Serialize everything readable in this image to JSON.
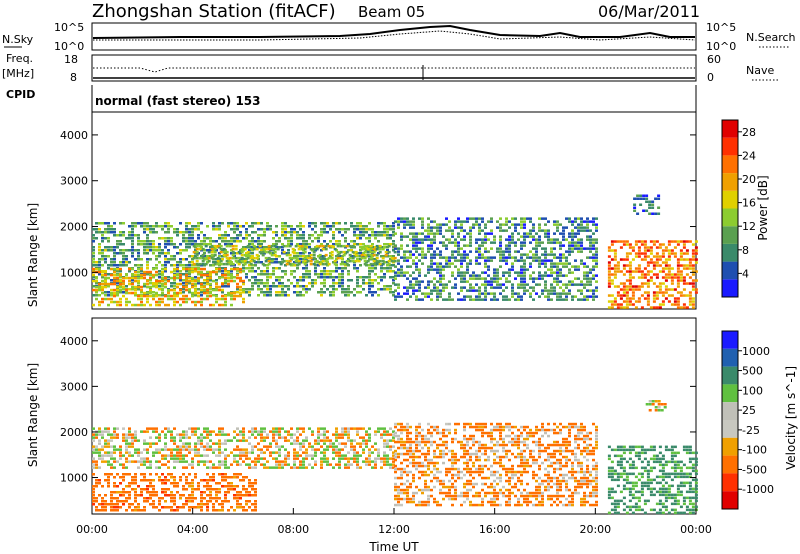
{
  "header": {
    "station": "Zhongshan Station (fitACF)",
    "beam": "Beam 05",
    "date": "06/Mar/2011"
  },
  "noise_panel": {
    "left_label": "N.Sky",
    "left_ticks": [
      "10^5",
      "10^0"
    ],
    "right_ticks": [
      "10^5",
      "10^0"
    ],
    "right_label": "N.Search"
  },
  "freq_panel": {
    "left_label_line1": "Freq.",
    "left_label_line2": "[MHz]",
    "left_ticks": [
      "18",
      "8"
    ],
    "right_ticks": [
      "60",
      "0"
    ],
    "right_label": "Nave"
  },
  "cpid_panel": {
    "label": "CPID",
    "text": "normal (fast stereo) 153"
  },
  "colors": {
    "power_scale": [
      "#1a1aff",
      "#1f4fb0",
      "#3a8a6a",
      "#5aa050",
      "#8ccc30",
      "#e0d000",
      "#f0a000",
      "#ff7000",
      "#ff3000",
      "#e00000"
    ],
    "velocity_scale": [
      "#1a1aff",
      "#2060b0",
      "#3a8a6a",
      "#60c040",
      "#c0c0b8",
      "#c8c8c0",
      "#f0a000",
      "#ff7000",
      "#ff3000",
      "#e00000"
    ]
  },
  "chart_data": [
    {
      "type": "heatmap",
      "title": "",
      "quantity": "Power",
      "ylabel": "Slant Range [km]",
      "xlabel": "",
      "xlim": [
        "00:00",
        "00:00"
      ],
      "ylim": [
        200,
        4500
      ],
      "yticks": [
        1000,
        2000,
        3000,
        4000
      ],
      "colorbar": {
        "label": "Power [dB]",
        "ticks": [
          4,
          8,
          12,
          16,
          20,
          24,
          28
        ],
        "range": [
          0,
          30
        ]
      },
      "echo_regions": [
        {
          "t_start": 0.0,
          "t_end": 12.0,
          "range_low": 500,
          "range_high": 2100,
          "level": 10
        },
        {
          "t_start": 0.0,
          "t_end": 6.0,
          "range_low": 300,
          "range_high": 1100,
          "level": 18
        },
        {
          "t_start": 4.0,
          "t_end": 12.0,
          "range_low": 1200,
          "range_high": 1600,
          "level": 14
        },
        {
          "t_start": 12.0,
          "t_end": 20.0,
          "range_low": 400,
          "range_high": 2200,
          "level": 8
        },
        {
          "t_start": 20.5,
          "t_end": 24.0,
          "range_low": 200,
          "range_high": 1700,
          "level": 22
        },
        {
          "t_start": 21.5,
          "t_end": 22.5,
          "range_low": 2300,
          "range_high": 2700,
          "level": 6
        }
      ]
    },
    {
      "type": "heatmap",
      "title": "",
      "quantity": "Velocity",
      "ylabel": "Slant Range [km]",
      "xlabel": "Time UT",
      "xticks": [
        "00:00",
        "04:00",
        "08:00",
        "12:00",
        "16:00",
        "20:00",
        "00:00"
      ],
      "ylim": [
        200,
        4500
      ],
      "yticks": [
        1000,
        2000,
        3000,
        4000
      ],
      "colorbar": {
        "label": "Velocity [m s^-1]",
        "ticks": [
          1000,
          500,
          100,
          25,
          -25,
          -100,
          -500,
          -1000
        ]
      },
      "echo_regions": [
        {
          "t_start": 0.0,
          "t_end": 12.0,
          "range_low": 1200,
          "range_high": 2100,
          "velocity": 0
        },
        {
          "t_start": 0.0,
          "t_end": 6.5,
          "range_low": 300,
          "range_high": 1100,
          "velocity": -300
        },
        {
          "t_start": 12.0,
          "t_end": 20.0,
          "range_low": 400,
          "range_high": 2200,
          "velocity": -150
        },
        {
          "t_start": 20.5,
          "t_end": 24.0,
          "range_low": 200,
          "range_high": 1700,
          "velocity": 600
        },
        {
          "t_start": 22.0,
          "t_end": 22.8,
          "range_low": 2500,
          "range_high": 2700,
          "velocity": 0
        }
      ]
    }
  ]
}
